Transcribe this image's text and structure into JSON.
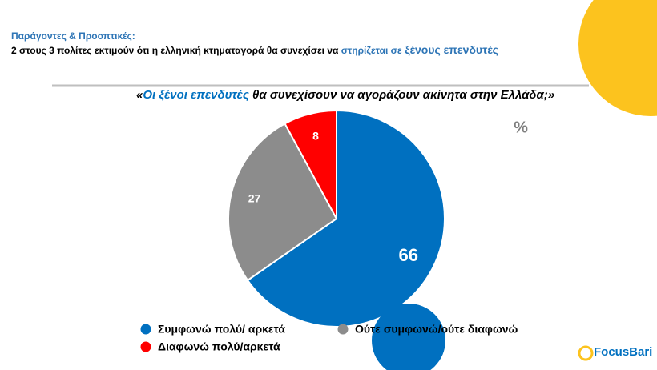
{
  "header": {
    "title": "Παράγοντες & Προοπτικές:",
    "subtitle": [
      "2 στους 3 πολίτες εκτιμούν ότι η ελληνική κτηματαγορά θα συνεχίσει να ",
      "στηρίζεται σε",
      " ξένους επενδυτές"
    ]
  },
  "chart_data": {
    "type": "pie",
    "title": [
      "«",
      "Οι ξένοι επενδυτές",
      " θα συνεχίσουν να αγοράζουν ακίνητα στην Ελλάδα;»"
    ],
    "unit": "%",
    "categories": [
      "Συμφωνώ πολύ/ αρκετά",
      "Ούτε συμφωνώ/ούτε διαφωνώ",
      "Διαφωνώ πολύ/αρκετά"
    ],
    "values": [
      66,
      27,
      8
    ],
    "colors": [
      "#0070c0",
      "#8c8c8c",
      "#ff0000"
    ]
  },
  "logo": "FocusBari"
}
